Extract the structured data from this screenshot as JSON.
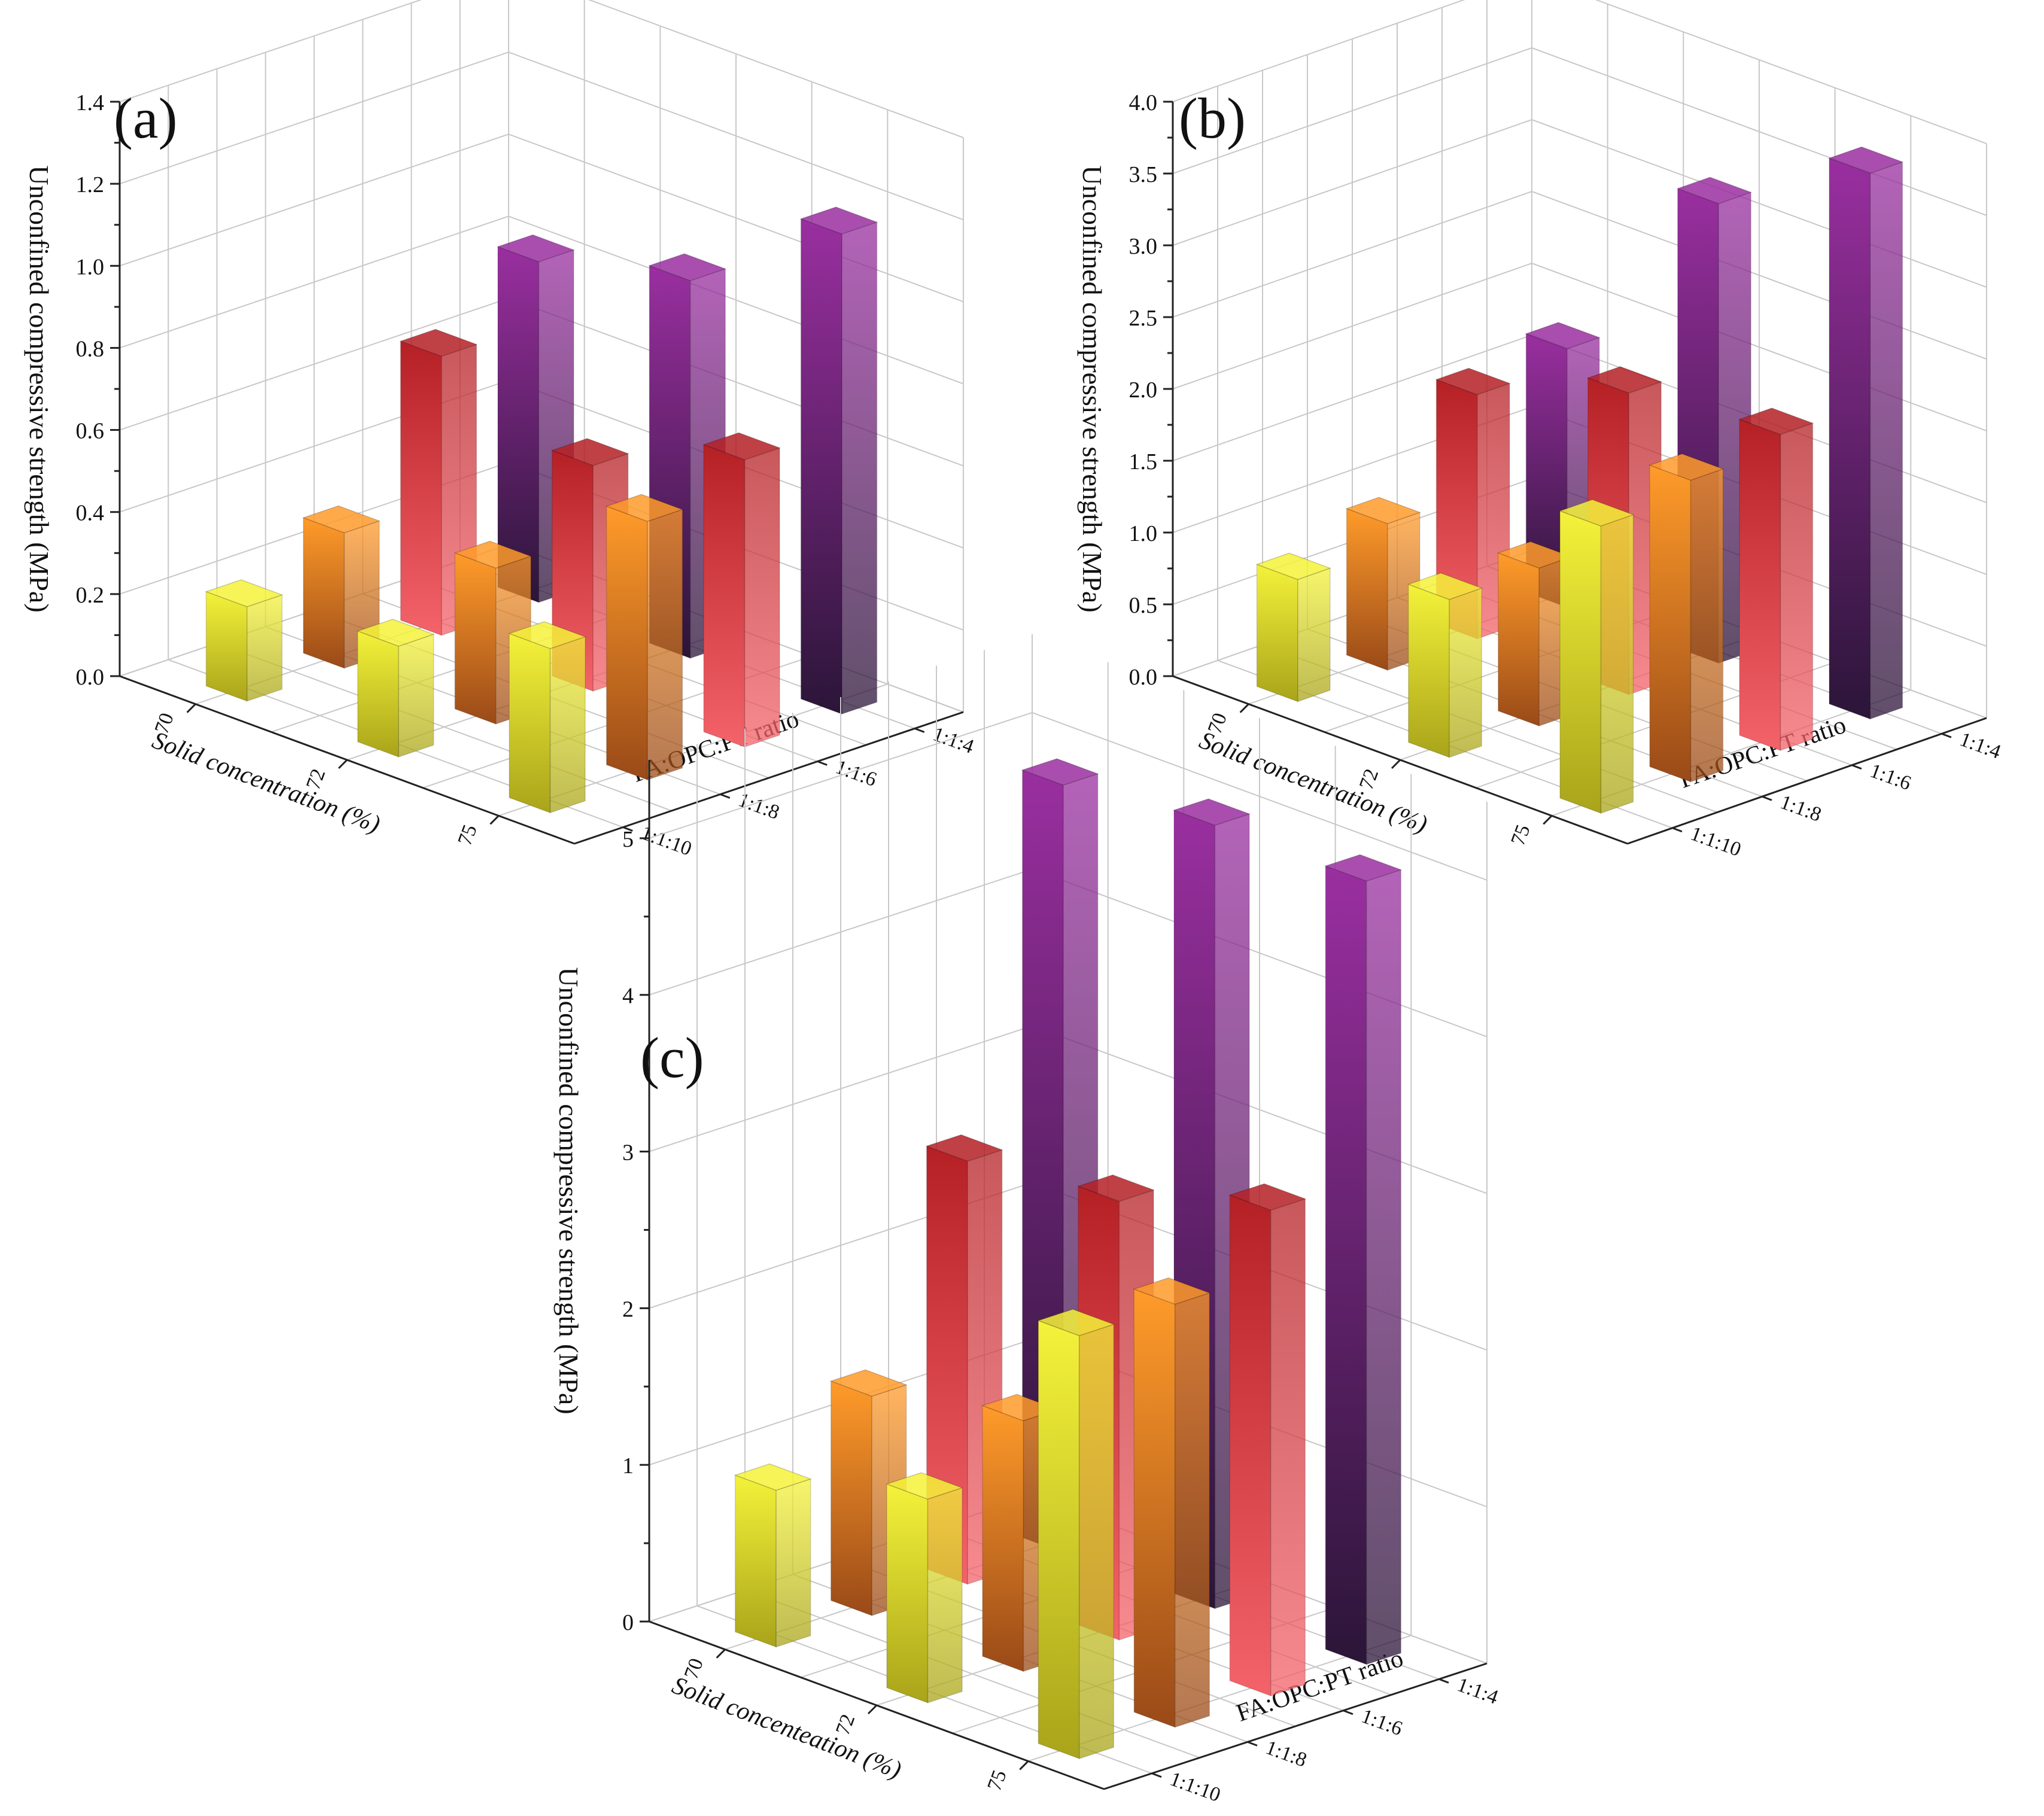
{
  "chart_data": [
    {
      "type": "bar3d",
      "panel_label": "(a)",
      "zlabel": "Unconfined compressive strength (MPa)",
      "xlabel": "Solid concentration (%)",
      "ylabel": "FA:OPC:PT ratio",
      "x_categories": [
        "70",
        "72",
        "75"
      ],
      "y_categories": [
        "1:1:4",
        "1:1:6",
        "1:1:8",
        "1:1:10"
      ],
      "zlim": [
        0,
        1.4
      ],
      "zticks": [
        "0.0",
        "0.2",
        "0.4",
        "0.6",
        "0.8",
        "1.0",
        "1.2",
        "1.4"
      ],
      "values": [
        {
          "solid": "70",
          "ratio": "1:1:4",
          "value": 0.83
        },
        {
          "solid": "70",
          "ratio": "1:1:6",
          "value": 0.68
        },
        {
          "solid": "70",
          "ratio": "1:1:8",
          "value": 0.33
        },
        {
          "solid": "70",
          "ratio": "1:1:10",
          "value": 0.23
        },
        {
          "solid": "72",
          "ratio": "1:1:4",
          "value": 0.92
        },
        {
          "solid": "72",
          "ratio": "1:1:6",
          "value": 0.55
        },
        {
          "solid": "72",
          "ratio": "1:1:8",
          "value": 0.38
        },
        {
          "solid": "72",
          "ratio": "1:1:10",
          "value": 0.27
        },
        {
          "solid": "75",
          "ratio": "1:1:4",
          "value": 1.17
        },
        {
          "solid": "75",
          "ratio": "1:1:6",
          "value": 0.7
        },
        {
          "solid": "75",
          "ratio": "1:1:8",
          "value": 0.63
        },
        {
          "solid": "75",
          "ratio": "1:1:10",
          "value": 0.4
        }
      ]
    },
    {
      "type": "bar3d",
      "panel_label": "(b)",
      "zlabel": "Unconfined compressive strength (MPa)",
      "xlabel": "Solid concentration (%)",
      "ylabel": "FA:OPC:PT ratio",
      "x_categories": [
        "70",
        "72",
        "75"
      ],
      "y_categories": [
        "1:1:4",
        "1:1:6",
        "1:1:8",
        "1:1:10"
      ],
      "zlim": [
        0,
        4.0
      ],
      "zticks": [
        "0.0",
        "0.5",
        "1.0",
        "1.5",
        "2.0",
        "2.5",
        "3.0",
        "3.5",
        "4.0"
      ],
      "values": [
        {
          "solid": "70",
          "ratio": "1:1:4",
          "value": 1.8
        },
        {
          "solid": "70",
          "ratio": "1:1:6",
          "value": 1.7
        },
        {
          "solid": "70",
          "ratio": "1:1:8",
          "value": 1.02
        },
        {
          "solid": "70",
          "ratio": "1:1:10",
          "value": 0.85
        },
        {
          "solid": "72",
          "ratio": "1:1:4",
          "value": 3.2
        },
        {
          "solid": "72",
          "ratio": "1:1:6",
          "value": 2.1
        },
        {
          "solid": "72",
          "ratio": "1:1:8",
          "value": 1.1
        },
        {
          "solid": "72",
          "ratio": "1:1:10",
          "value": 1.1
        },
        {
          "solid": "75",
          "ratio": "1:1:4",
          "value": 3.8
        },
        {
          "solid": "75",
          "ratio": "1:1:6",
          "value": 2.2
        },
        {
          "solid": "75",
          "ratio": "1:1:8",
          "value": 2.1
        },
        {
          "solid": "75",
          "ratio": "1:1:10",
          "value": 2.0
        }
      ]
    },
    {
      "type": "bar3d",
      "panel_label": "(c)",
      "zlabel": "Unconfined compressive strength (MPa)",
      "xlabel": "Solid concenteation (%)",
      "ylabel": "FA:OPC:PT ratio",
      "x_categories": [
        "70",
        "72",
        "75"
      ],
      "y_categories": [
        "1:1:4",
        "1:1:6",
        "1:1:8",
        "1:1:10"
      ],
      "zlim": [
        0,
        5.5
      ],
      "zticks": [
        "0",
        "1",
        "2",
        "3",
        "4",
        "5"
      ],
      "values": [
        {
          "solid": "70",
          "ratio": "1:1:4",
          "value": 4.9
        },
        {
          "solid": "70",
          "ratio": "1:1:6",
          "value": 2.7
        },
        {
          "solid": "70",
          "ratio": "1:1:8",
          "value": 1.4
        },
        {
          "solid": "70",
          "ratio": "1:1:10",
          "value": 1.0
        },
        {
          "solid": "72",
          "ratio": "1:1:4",
          "value": 5.0
        },
        {
          "solid": "72",
          "ratio": "1:1:6",
          "value": 2.8
        },
        {
          "solid": "72",
          "ratio": "1:1:8",
          "value": 1.6
        },
        {
          "solid": "72",
          "ratio": "1:1:10",
          "value": 1.3
        },
        {
          "solid": "75",
          "ratio": "1:1:4",
          "value": 5.0
        },
        {
          "solid": "75",
          "ratio": "1:1:6",
          "value": 3.1
        },
        {
          "solid": "75",
          "ratio": "1:1:8",
          "value": 2.7
        },
        {
          "solid": "75",
          "ratio": "1:1:10",
          "value": 2.7
        }
      ]
    }
  ],
  "colors": {
    "ratio_1_1_4": [
      "#9a2fa0",
      "#2b1538"
    ],
    "ratio_1_1_6": [
      "#b52025",
      "#f4636a"
    ],
    "ratio_1_1_8": [
      "#ff9b2a",
      "#9a4a18"
    ],
    "ratio_1_1_10": [
      "#f4f23a",
      "#a9a41a"
    ]
  }
}
